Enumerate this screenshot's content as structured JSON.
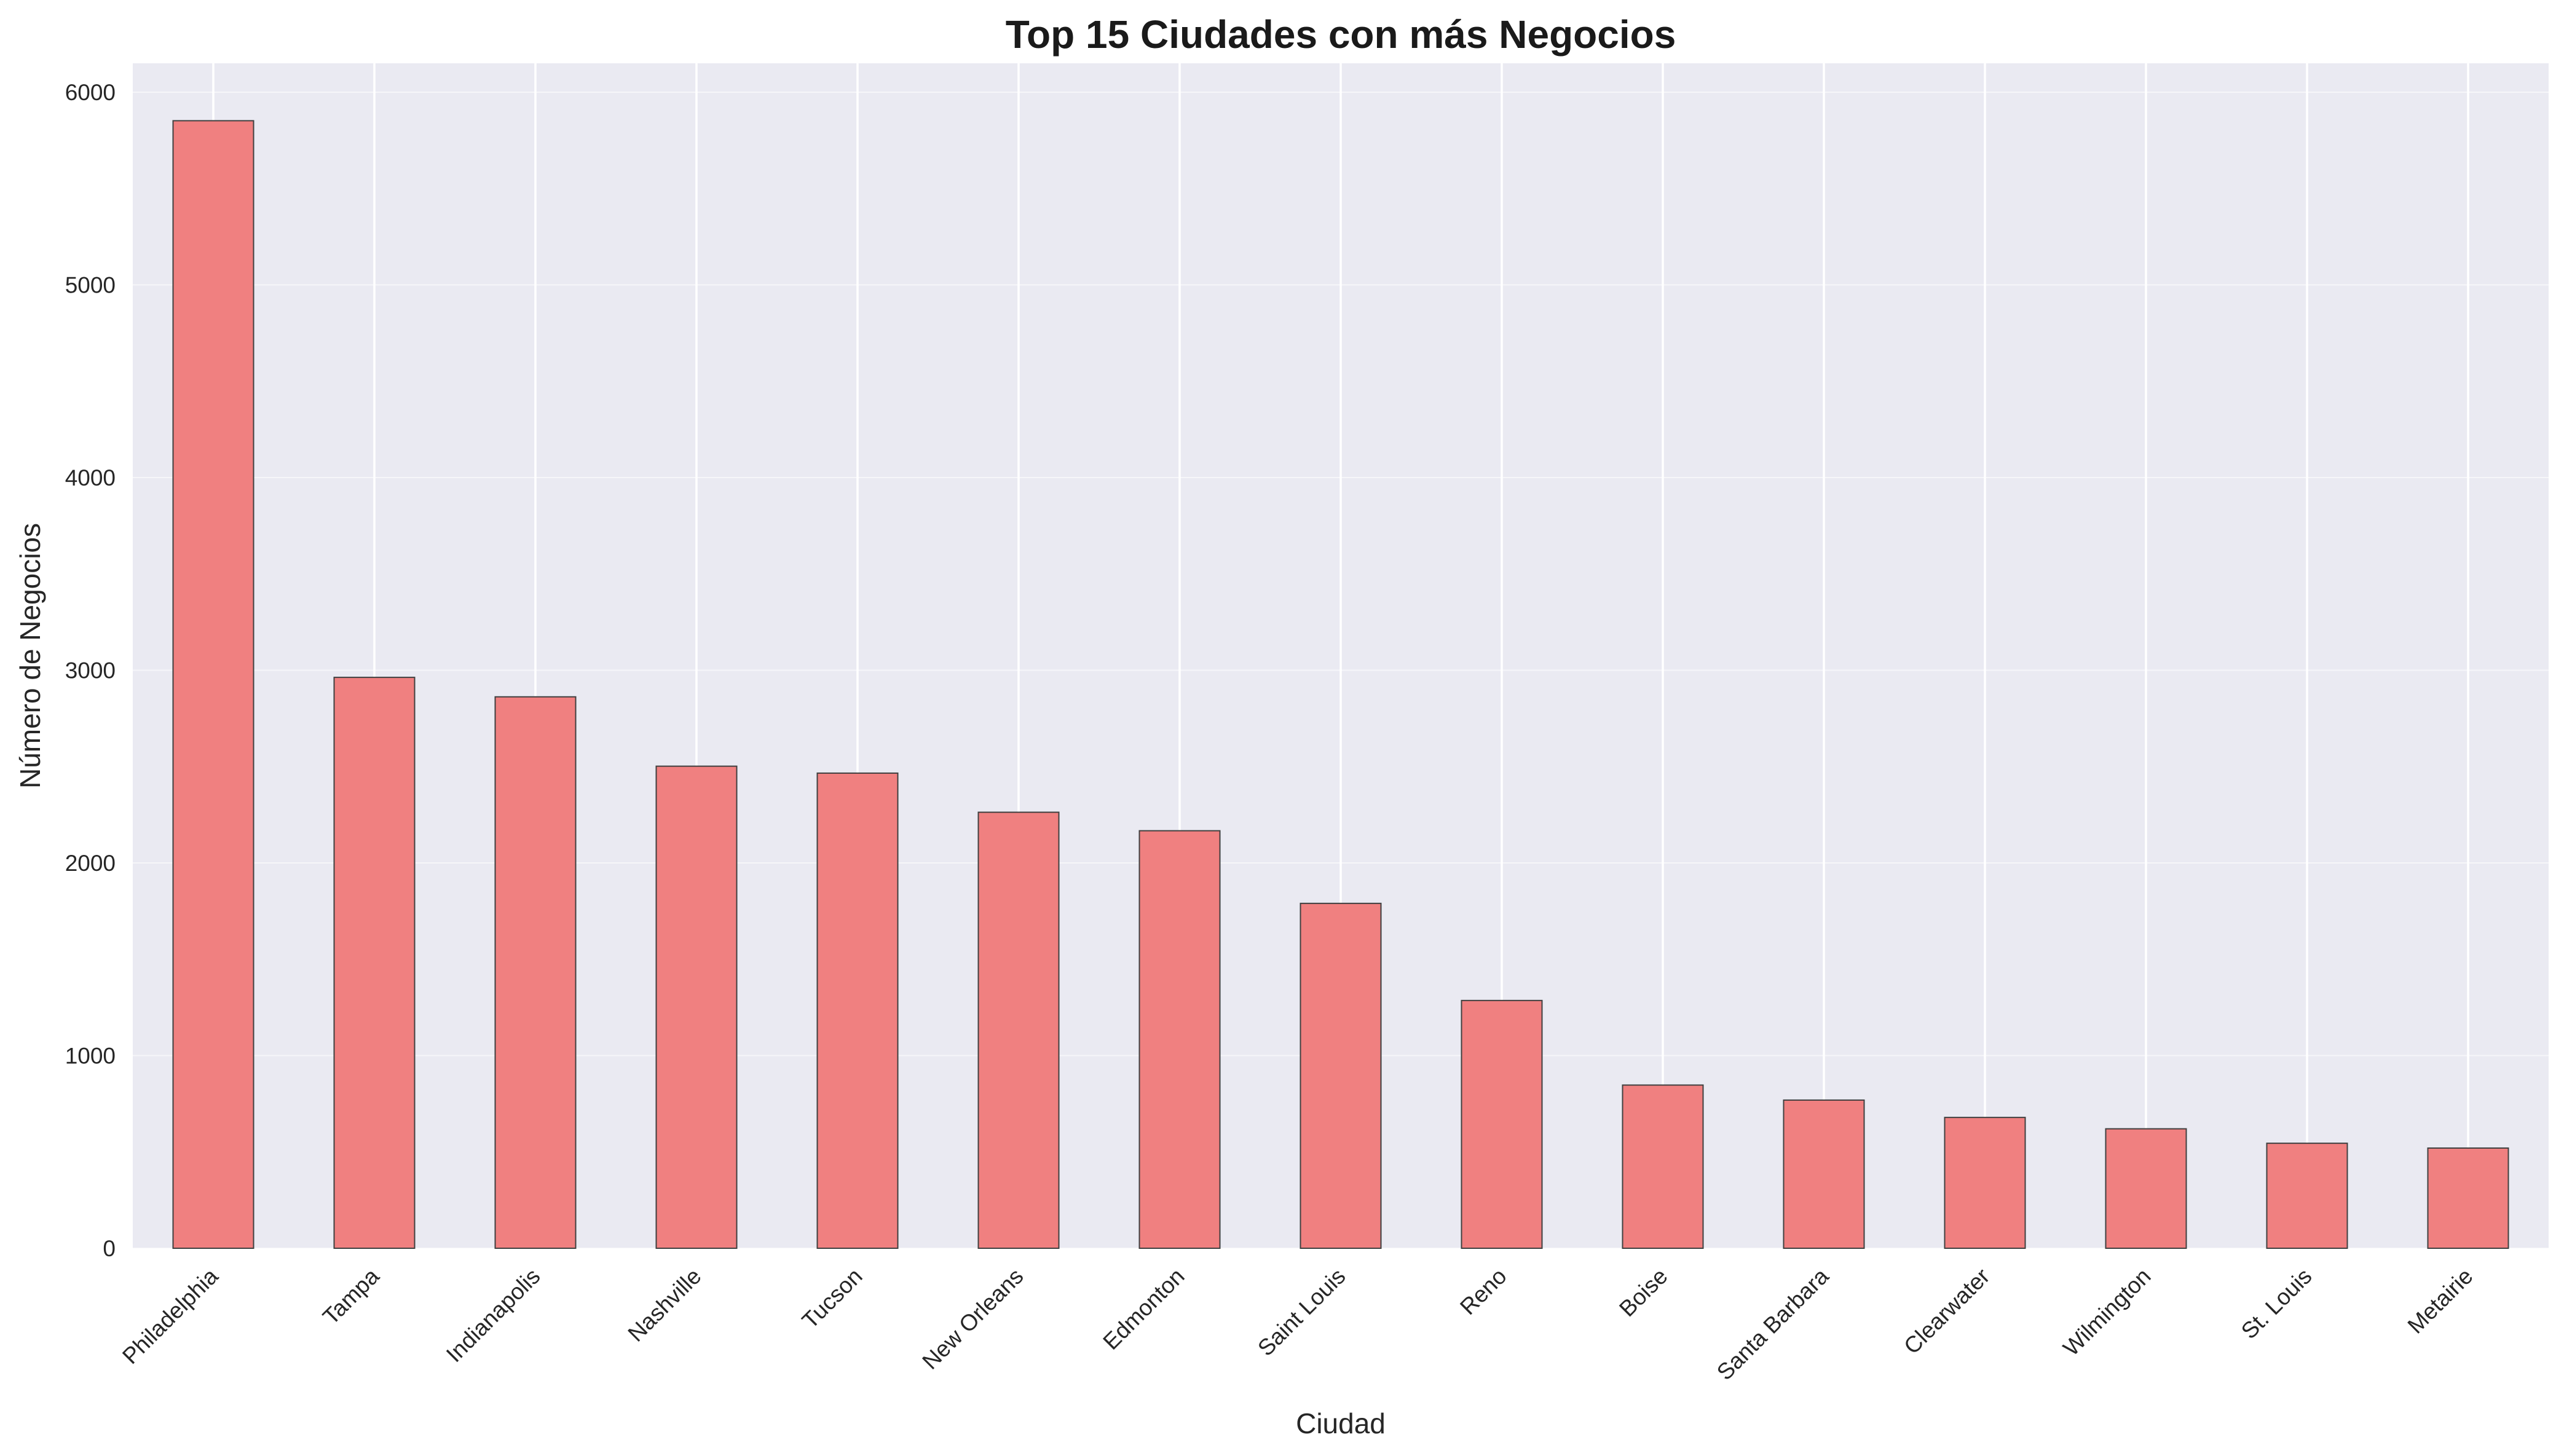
{
  "colors": {
    "plot_background": "#eaeaf2",
    "grid": "#ffffff",
    "bar_fill": "#f08080",
    "bar_edge": "#404040",
    "text": "#262626"
  },
  "chart_data": {
    "type": "bar",
    "title": "Top 15 Ciudades con más Negocios",
    "xlabel": "Ciudad",
    "ylabel": "Número de Negocios",
    "categories": [
      "Philadelphia",
      "Tampa",
      "Indianapolis",
      "Nashville",
      "Tucson",
      "New Orleans",
      "Edmonton",
      "Saint Louis",
      "Reno",
      "Boise",
      "Santa Barbara",
      "Clearwater",
      "Wilmington",
      "St. Louis",
      "Metairie"
    ],
    "values": [
      5852,
      2963,
      2862,
      2502,
      2466,
      2263,
      2167,
      1790,
      1286,
      847,
      769,
      679,
      620,
      545,
      520
    ],
    "ylim": [
      0,
      6150
    ],
    "yticks": [
      0,
      1000,
      2000,
      3000,
      4000,
      5000,
      6000
    ],
    "grid": true,
    "legend": "none"
  }
}
